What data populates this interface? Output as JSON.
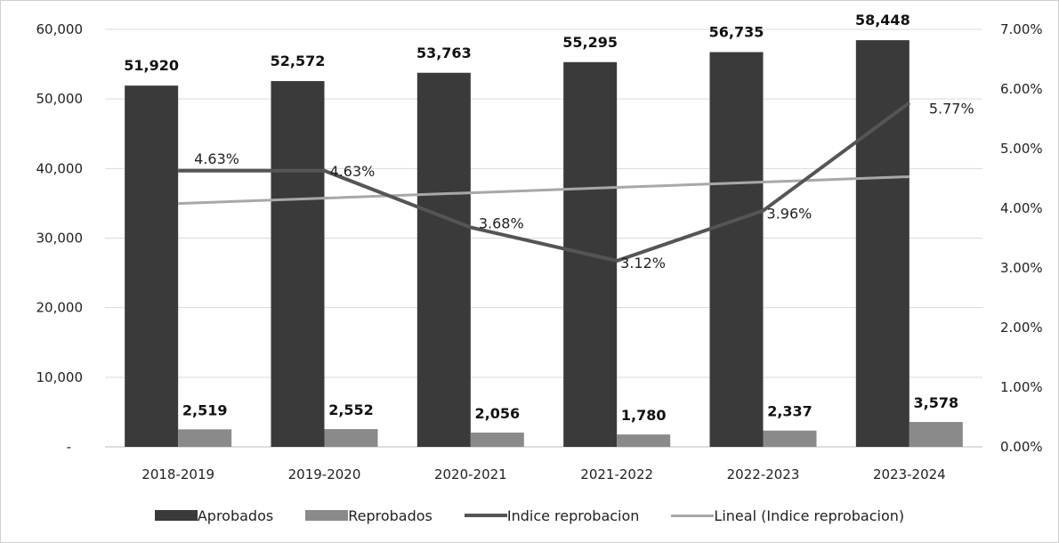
{
  "chart_data": {
    "type": "bar",
    "categories": [
      "2018-2019",
      "2019-2020",
      "2020-2021",
      "2021-2022",
      "2022-2023",
      "2023-2024"
    ],
    "series": [
      {
        "name": "Aprobados",
        "type": "bar",
        "axis": "left",
        "color": "#3a3a3a",
        "values": [
          51920,
          52572,
          53763,
          55295,
          56735,
          58448
        ],
        "labels": [
          "51,920",
          "52,572",
          "53,763",
          "55,295",
          "56,735",
          "58,448"
        ]
      },
      {
        "name": "Reprobados",
        "type": "bar",
        "axis": "left",
        "color": "#8a8a8a",
        "values": [
          2519,
          2552,
          2056,
          1780,
          2337,
          3578
        ],
        "labels": [
          "2,519",
          "2,552",
          "2,056",
          "1,780",
          "2,337",
          "3,578"
        ]
      },
      {
        "name": "Indice reprobacion",
        "type": "line",
        "axis": "right",
        "color": "#555555",
        "values": [
          4.63,
          4.63,
          3.68,
          3.12,
          3.96,
          5.77
        ],
        "labels": [
          "4.63%",
          "4.63%",
          "3.68%",
          "3.12%",
          "3.96%",
          "5.77%"
        ]
      },
      {
        "name": "Lineal (Indice reprobacion)",
        "type": "line",
        "axis": "right",
        "color": "#a8a8a8",
        "values": [
          4.08,
          4.17,
          4.26,
          4.35,
          4.44,
          4.53
        ]
      }
    ],
    "y_left": {
      "min": 0,
      "max": 60000,
      "ticks": [
        "-",
        "10,000",
        "20,000",
        "30,000",
        "40,000",
        "50,000",
        "60,000"
      ]
    },
    "y_right": {
      "min": 0,
      "max": 7,
      "ticks": [
        "0.00%",
        "1.00%",
        "2.00%",
        "3.00%",
        "4.00%",
        "5.00%",
        "6.00%",
        "7.00%"
      ]
    },
    "grid": true,
    "legend_position": "bottom"
  },
  "legend": {
    "aprobados": "Aprobados",
    "reprobados": "Reprobados",
    "indice": "Indice reprobacion",
    "lineal": "Lineal (Indice reprobacion)"
  }
}
